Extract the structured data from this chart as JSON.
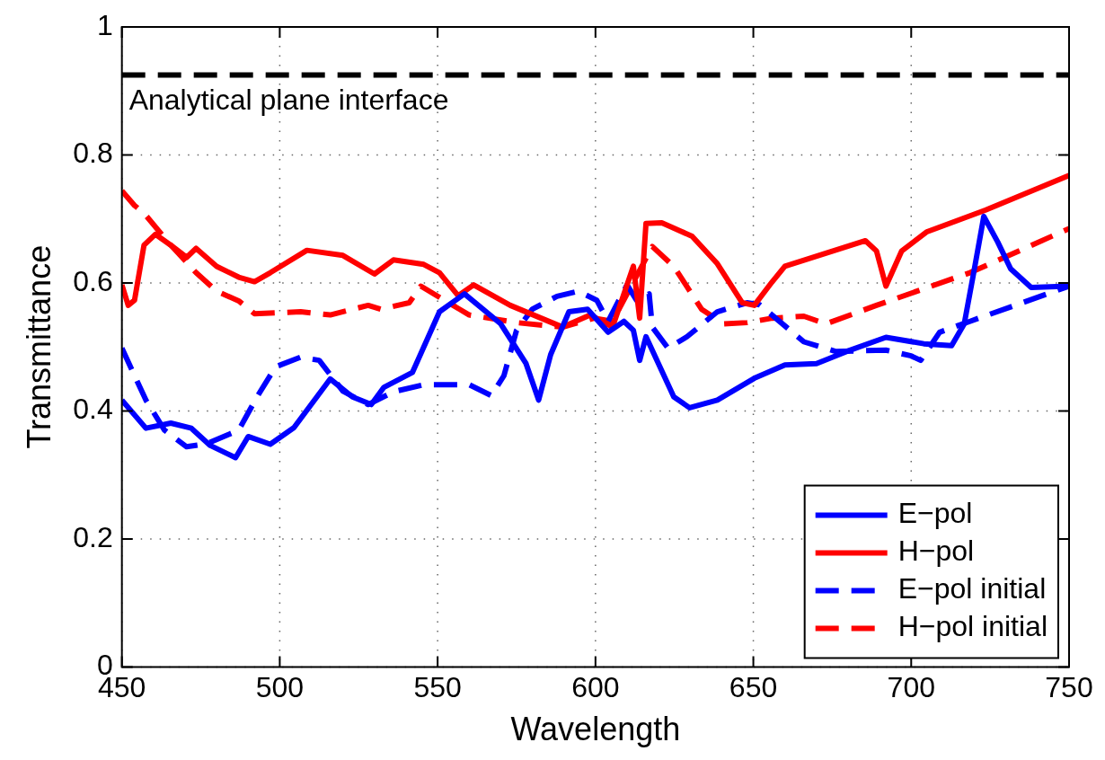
{
  "chart_data": {
    "type": "line",
    "xlabel": "Wavelength",
    "ylabel": "Transmittance",
    "xlim": [
      450,
      750
    ],
    "xticks": [
      450,
      500,
      550,
      600,
      650,
      700,
      750
    ],
    "ylim": [
      0,
      1
    ],
    "yticks": [
      0,
      0.2,
      0.4,
      0.6,
      0.8,
      1
    ],
    "grid": true,
    "legend": "bottom right",
    "marker": "none",
    "ref_lines": [
      {
        "axis": "y",
        "value": 0.925,
        "label": "Analytical plane interface",
        "color": "#000000",
        "line_style": "dashed"
      }
    ],
    "series": [
      {
        "name": "E−pol",
        "color": "#0000ff",
        "line_style": "solid",
        "x": [
          450,
          457.6,
          465.5,
          472,
          478,
          486,
          490,
          497,
          504.5,
          516,
          523,
          529,
          533,
          542,
          550.6,
          558.5,
          570,
          578,
          582,
          585.8,
          591.6,
          597.5,
          604,
          609,
          612,
          614,
          616,
          624.8,
          629.8,
          638.6,
          650.3,
          660,
          670,
          679.6,
          692,
          704,
          712.8,
          716.8,
          719.8,
          723,
          727.4,
          731.5,
          738,
          750
        ],
        "values": [
          0.417,
          0.373,
          0.381,
          0.373,
          0.346,
          0.327,
          0.36,
          0.348,
          0.374,
          0.45,
          0.422,
          0.41,
          0.437,
          0.46,
          0.555,
          0.583,
          0.536,
          0.474,
          0.417,
          0.488,
          0.555,
          0.559,
          0.523,
          0.54,
          0.526,
          0.479,
          0.516,
          0.422,
          0.405,
          0.417,
          0.451,
          0.472,
          0.474,
          0.493,
          0.515,
          0.505,
          0.502,
          0.536,
          0.616,
          0.704,
          0.664,
          0.622,
          0.593,
          0.595
        ]
      },
      {
        "name": "H−pol",
        "color": "#ff0000",
        "line_style": "solid",
        "x": [
          450,
          452,
          454,
          457,
          460.6,
          465.5,
          470.5,
          473.5,
          480,
          487,
          492,
          497,
          508.6,
          520,
          530,
          536,
          545.6,
          550.6,
          556.5,
          561.4,
          573,
          589.6,
          598.4,
          605.4,
          612,
          614,
          616,
          621,
          630.6,
          638.6,
          646.5,
          650.3,
          656,
          660,
          685.5,
          689,
          692,
          697,
          705,
          723.6,
          750
        ],
        "values": [
          0.597,
          0.565,
          0.573,
          0.659,
          0.676,
          0.659,
          0.64,
          0.654,
          0.626,
          0.609,
          0.602,
          0.616,
          0.651,
          0.643,
          0.614,
          0.636,
          0.629,
          0.616,
          0.58,
          0.597,
          0.565,
          0.531,
          0.55,
          0.531,
          0.626,
          0.545,
          0.693,
          0.694,
          0.673,
          0.63,
          0.569,
          0.565,
          0.602,
          0.626,
          0.666,
          0.65,
          0.595,
          0.65,
          0.68,
          0.714,
          0.768
        ]
      },
      {
        "name": "E−pol initial",
        "color": "#0000ff",
        "line_style": "dashed",
        "x": [
          450,
          457.6,
          463.5,
          470.5,
          477,
          487,
          492.8,
          498.7,
          506.6,
          512.5,
          520,
          528,
          536,
          545.6,
          560,
          567,
          571,
          575,
          580,
          587.8,
          594.6,
          600.4,
          604,
          607,
          610,
          613,
          617,
          618,
          623,
          629,
          638.6,
          648,
          652,
          666,
          676,
          692,
          700,
          703,
          709,
          718.6,
          750
        ],
        "values": [
          0.498,
          0.417,
          0.37,
          0.344,
          0.349,
          0.37,
          0.422,
          0.469,
          0.484,
          0.479,
          0.431,
          0.41,
          0.43,
          0.441,
          0.441,
          0.424,
          0.455,
          0.526,
          0.559,
          0.579,
          0.587,
          0.573,
          0.54,
          0.569,
          0.597,
          0.573,
          0.583,
          0.531,
          0.498,
          0.516,
          0.555,
          0.569,
          0.566,
          0.508,
          0.493,
          0.495,
          0.486,
          0.479,
          0.523,
          0.54,
          0.595
        ]
      },
      {
        "name": "H−pol initial",
        "color": "#ff0000",
        "line_style": "dashed",
        "x": [
          450,
          454,
          457,
          464.6,
          473.5,
          480,
          487,
          492,
          506.6,
          516,
          528,
          532,
          541,
          544.7,
          553.5,
          560,
          575,
          589.6,
          599.6,
          605.4,
          618,
          624.8,
          633.6,
          640.6,
          648,
          656,
          666,
          673,
          689,
          718.6,
          750
        ],
        "values": [
          0.744,
          0.721,
          0.709,
          0.664,
          0.616,
          0.587,
          0.572,
          0.552,
          0.555,
          0.55,
          0.565,
          0.559,
          0.569,
          0.595,
          0.569,
          0.55,
          0.538,
          0.531,
          0.545,
          0.54,
          0.657,
          0.626,
          0.559,
          0.536,
          0.538,
          0.545,
          0.548,
          0.536,
          0.565,
          0.616,
          0.685
        ]
      }
    ]
  }
}
